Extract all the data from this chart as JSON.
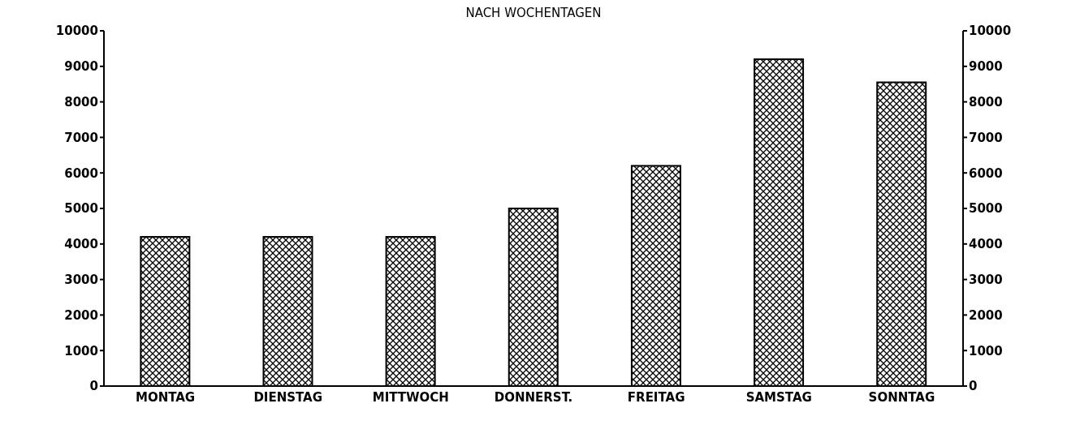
{
  "chart_data": {
    "type": "bar",
    "title": "NACH WOCHENTAGEN",
    "categories": [
      "MONTAG",
      "DIENSTAG",
      "MITTWOCH",
      "DONNERST.",
      "FREITAG",
      "SAMSTAG",
      "SONNTAG"
    ],
    "values": [
      4200,
      4200,
      4200,
      5000,
      6200,
      9200,
      8550
    ],
    "color": "#000000",
    "ylim": [
      0,
      10000
    ],
    "yticks": [
      0,
      1000,
      2000,
      3000,
      4000,
      5000,
      6000,
      7000,
      8000,
      9000,
      10000
    ],
    "y2lim": [
      0,
      10000
    ],
    "y2ticks": [
      0,
      1000,
      2000,
      3000,
      4000,
      5000,
      6000,
      7000,
      8000,
      9000,
      10000
    ]
  }
}
